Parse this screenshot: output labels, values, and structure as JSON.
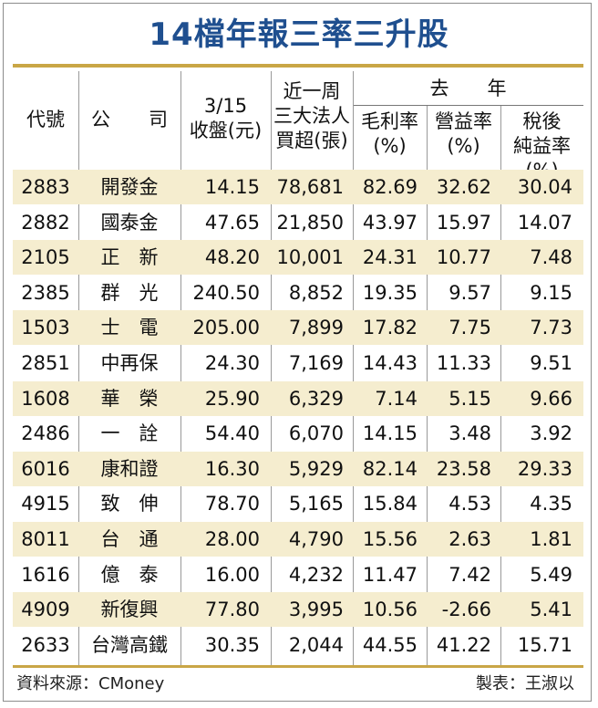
{
  "title": "14檔年報三率三升股",
  "headers": {
    "code": "代號",
    "company": "公　　司",
    "close_line1": "3/15",
    "close_line2": "收盤(元)",
    "buy_line1": "近一周",
    "buy_line2": "三大法人",
    "buy_line3": "買超(張)",
    "last_year": "去　　年",
    "gm_line1": "毛利率",
    "gm_line2": "(%)",
    "om_line1": "營益率",
    "om_line2": "(%)",
    "nm_line1": "稅後",
    "nm_line2": "純益率(%)"
  },
  "rows": [
    {
      "code": "2883",
      "name": "開發金",
      "close": "14.15",
      "buy": "78,681",
      "gm": "82.69",
      "om": "32.62",
      "nm": "30.04"
    },
    {
      "code": "2882",
      "name": "國泰金",
      "close": "47.65",
      "buy": "21,850",
      "gm": "43.97",
      "om": "15.97",
      "nm": "14.07"
    },
    {
      "code": "2105",
      "name": "正　新",
      "close": "48.20",
      "buy": "10,001",
      "gm": "24.31",
      "om": "10.77",
      "nm": "7.48"
    },
    {
      "code": "2385",
      "name": "群　光",
      "close": "240.50",
      "buy": "8,852",
      "gm": "19.35",
      "om": "9.57",
      "nm": "9.15"
    },
    {
      "code": "1503",
      "name": "士　電",
      "close": "205.00",
      "buy": "7,899",
      "gm": "17.82",
      "om": "7.75",
      "nm": "7.73"
    },
    {
      "code": "2851",
      "name": "中再保",
      "close": "24.30",
      "buy": "7,169",
      "gm": "14.43",
      "om": "11.33",
      "nm": "9.51"
    },
    {
      "code": "1608",
      "name": "華　榮",
      "close": "25.90",
      "buy": "6,329",
      "gm": "7.14",
      "om": "5.15",
      "nm": "9.66"
    },
    {
      "code": "2486",
      "name": "一　詮",
      "close": "54.40",
      "buy": "6,070",
      "gm": "14.15",
      "om": "3.48",
      "nm": "3.92"
    },
    {
      "code": "6016",
      "name": "康和證",
      "close": "16.30",
      "buy": "5,929",
      "gm": "82.14",
      "om": "23.58",
      "nm": "29.33"
    },
    {
      "code": "4915",
      "name": "致　伸",
      "close": "78.70",
      "buy": "5,165",
      "gm": "15.84",
      "om": "4.53",
      "nm": "4.35"
    },
    {
      "code": "8011",
      "name": "台　通",
      "close": "28.00",
      "buy": "4,790",
      "gm": "15.56",
      "om": "2.63",
      "nm": "1.81"
    },
    {
      "code": "1616",
      "name": "億　泰",
      "close": "16.00",
      "buy": "4,232",
      "gm": "11.47",
      "om": "7.42",
      "nm": "5.49"
    },
    {
      "code": "4909",
      "name": "新復興",
      "close": "77.80",
      "buy": "3,995",
      "gm": "10.56",
      "om": "-2.66",
      "nm": "5.41"
    },
    {
      "code": "2633",
      "name": "台灣高鐵",
      "close": "30.35",
      "buy": "2,044",
      "gm": "44.55",
      "om": "41.22",
      "nm": "15.71"
    }
  ],
  "footer": {
    "source": "資料來源：CMoney",
    "credit": "製表：王淑以"
  },
  "colors": {
    "title": "#1f4f8f",
    "accent_rule": "#c9a646",
    "alt_row": "#f5edcf"
  }
}
